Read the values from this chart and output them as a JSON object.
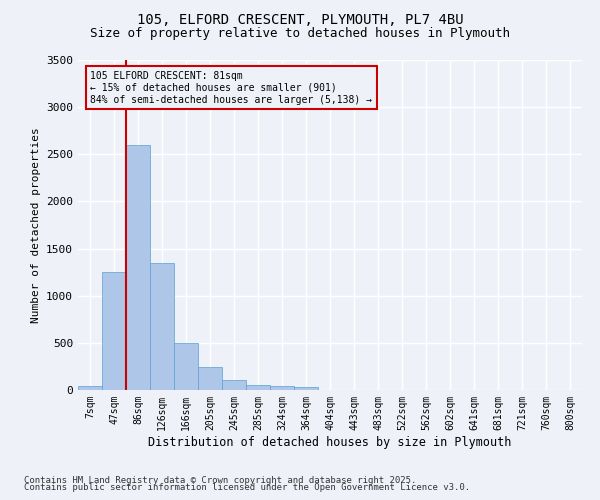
{
  "title1": "105, ELFORD CRESCENT, PLYMOUTH, PL7 4BU",
  "title2": "Size of property relative to detached houses in Plymouth",
  "xlabel": "Distribution of detached houses by size in Plymouth",
  "ylabel": "Number of detached properties",
  "categories": [
    "7sqm",
    "47sqm",
    "86sqm",
    "126sqm",
    "166sqm",
    "205sqm",
    "245sqm",
    "285sqm",
    "324sqm",
    "364sqm",
    "404sqm",
    "443sqm",
    "483sqm",
    "522sqm",
    "562sqm",
    "602sqm",
    "641sqm",
    "681sqm",
    "721sqm",
    "760sqm",
    "800sqm"
  ],
  "values": [
    40,
    1250,
    2600,
    1350,
    500,
    240,
    110,
    50,
    40,
    30,
    0,
    0,
    0,
    0,
    0,
    0,
    0,
    0,
    0,
    0,
    0
  ],
  "bar_color": "#aec6e8",
  "bar_edge_color": "#5a9fd4",
  "vline_color": "#cc0000",
  "annotation_text": "105 ELFORD CRESCENT: 81sqm\n← 15% of detached houses are smaller (901)\n84% of semi-detached houses are larger (5,138) →",
  "annotation_box_color": "#cc0000",
  "ylim": [
    0,
    3500
  ],
  "yticks": [
    0,
    500,
    1000,
    1500,
    2000,
    2500,
    3000,
    3500
  ],
  "bg_color": "#eef2f8",
  "grid_color": "#ffffff",
  "footer1": "Contains HM Land Registry data © Crown copyright and database right 2025.",
  "footer2": "Contains public sector information licensed under the Open Government Licence v3.0."
}
